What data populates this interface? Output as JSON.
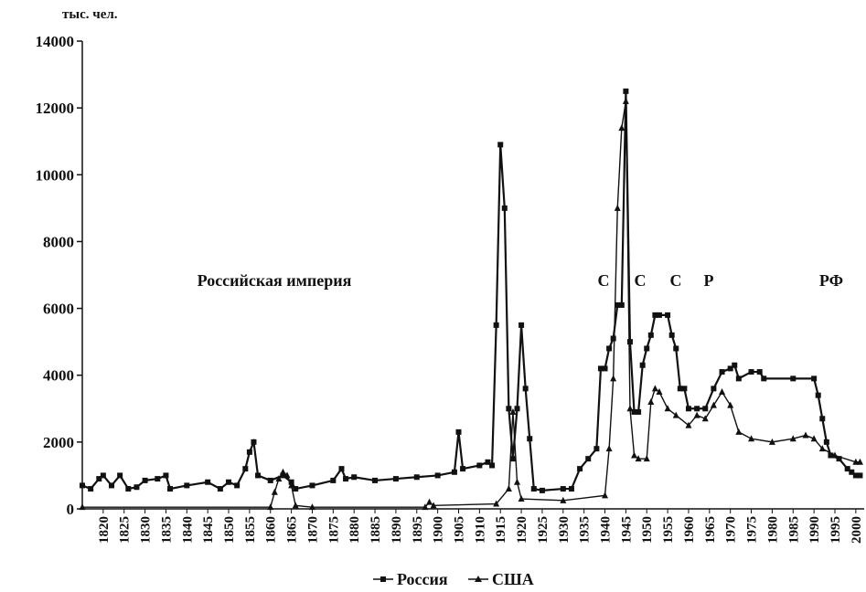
{
  "chart_data": {
    "type": "line",
    "y_axis_label": "тыс. чел.",
    "annotations": [
      "Российская империя",
      "С",
      "С",
      "С",
      "Р",
      "РФ"
    ],
    "xlim": [
      1815,
      2002
    ],
    "ylim": [
      0,
      14000
    ],
    "xticks": [
      1820,
      1825,
      1830,
      1835,
      1840,
      1845,
      1850,
      1855,
      1860,
      1865,
      1870,
      1875,
      1880,
      1885,
      1890,
      1895,
      1900,
      1905,
      1910,
      1915,
      1920,
      1925,
      1930,
      1935,
      1940,
      1945,
      1950,
      1955,
      1960,
      1965,
      1970,
      1975,
      1980,
      1985,
      1990,
      1995,
      2000
    ],
    "yticks": [
      0,
      2000,
      4000,
      6000,
      8000,
      10000,
      12000,
      14000
    ],
    "series": [
      {
        "name": "Россия",
        "color": "#111111",
        "marker": "square",
        "x": [
          1815,
          1817,
          1819,
          1820,
          1822,
          1824,
          1826,
          1828,
          1830,
          1833,
          1835,
          1836,
          1840,
          1845,
          1848,
          1850,
          1852,
          1854,
          1855,
          1856,
          1857,
          1860,
          1863,
          1865,
          1866,
          1870,
          1875,
          1877,
          1878,
          1880,
          1885,
          1890,
          1895,
          1900,
          1904,
          1905,
          1906,
          1910,
          1912,
          1913,
          1914,
          1915,
          1916,
          1917,
          1918,
          1919,
          1920,
          1921,
          1922,
          1923,
          1925,
          1930,
          1932,
          1934,
          1936,
          1938,
          1939,
          1940,
          1941,
          1942,
          1943,
          1944,
          1945,
          1946,
          1947,
          1948,
          1949,
          1950,
          1951,
          1952,
          1953,
          1955,
          1956,
          1957,
          1958,
          1959,
          1960,
          1962,
          1964,
          1966,
          1968,
          1970,
          1971,
          1972,
          1975,
          1977,
          1978,
          1985,
          1990,
          1991,
          1992,
          1993,
          1994,
          1996,
          1998,
          1999,
          2000,
          2001
        ],
        "values": [
          700,
          600,
          900,
          1000,
          700,
          1000,
          600,
          650,
          850,
          900,
          1000,
          600,
          700,
          800,
          600,
          800,
          700,
          1200,
          1700,
          2000,
          1000,
          850,
          1000,
          800,
          600,
          700,
          850,
          1200,
          900,
          950,
          850,
          900,
          950,
          1000,
          1100,
          2300,
          1200,
          1300,
          1400,
          1300,
          5500,
          10900,
          9000,
          3000,
          1500,
          3000,
          5500,
          3600,
          2100,
          600,
          550,
          600,
          600,
          1200,
          1500,
          1800,
          4200,
          4200,
          4800,
          5100,
          6100,
          6100,
          12500,
          5000,
          2900,
          2900,
          4300,
          4800,
          5200,
          5800,
          5800,
          5800,
          5200,
          4800,
          3600,
          3600,
          3000,
          3000,
          3000,
          3600,
          4100,
          4200,
          4300,
          3900,
          4100,
          4100,
          3900,
          3900,
          3900,
          3400,
          2700,
          2000,
          1600,
          1500,
          1200,
          1100,
          1000,
          1000
        ]
      },
      {
        "name": "США",
        "color": "#111111",
        "marker": "triangle",
        "x": [
          1815,
          1860,
          1861,
          1862,
          1863,
          1864,
          1865,
          1866,
          1870,
          1897,
          1898,
          1899,
          1914,
          1917,
          1918,
          1919,
          1920,
          1930,
          1940,
          1941,
          1942,
          1943,
          1944,
          1945,
          1946,
          1947,
          1948,
          1950,
          1951,
          1952,
          1953,
          1955,
          1957,
          1960,
          1962,
          1964,
          1966,
          1968,
          1970,
          1972,
          1975,
          1980,
          1985,
          1988,
          1990,
          1992,
          1995,
          2000,
          2001
        ],
        "values": [
          50,
          50,
          500,
          900,
          1100,
          1000,
          700,
          100,
          50,
          50,
          200,
          100,
          150,
          600,
          2900,
          800,
          300,
          250,
          400,
          1800,
          3900,
          9000,
          11400,
          12200,
          3000,
          1600,
          1500,
          1500,
          3200,
          3600,
          3500,
          3000,
          2800,
          2500,
          2800,
          2700,
          3100,
          3500,
          3100,
          2300,
          2100,
          2000,
          2100,
          2200,
          2100,
          1800,
          1600,
          1400,
          1400
        ]
      }
    ]
  }
}
